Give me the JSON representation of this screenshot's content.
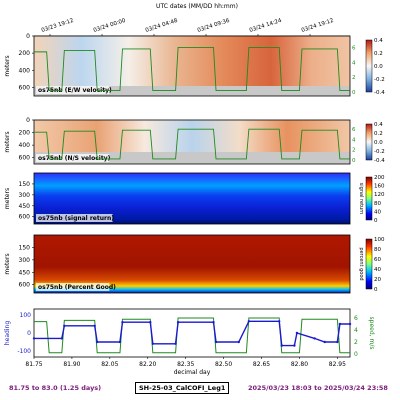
{
  "top_axis": {
    "title": "UTC dates (MM/DD hh:mm)",
    "ticks": [
      "03/23 19:12",
      "03/24 00:00",
      "03/24 04:48",
      "03/24 09:36",
      "03/24 14:24",
      "03/24 19:12"
    ]
  },
  "footer": {
    "range_days": "81.75 to 83.0 (1.25 days)",
    "cruise": "SH-25-03_CalCOFI_Leg1",
    "range_dates": "2025/03/23 18:03 to 2025/03/24 23:58"
  },
  "colors": {
    "ship_speed": "#1f8a1f",
    "heading": "#1a1ad0",
    "text_label": "#7a1a7a",
    "bad_data": "#c8c8c8"
  },
  "chart_data": [
    {
      "type": "heatmap",
      "panel_label": "os75nb (E/W velocity)",
      "ylabel": "meters",
      "y_ticks": [
        0,
        200,
        400,
        600
      ],
      "ylim": [
        700,
        0
      ],
      "colorbar_ticks": [
        0.4,
        0.2,
        0.0,
        -0.2,
        -0.4
      ],
      "colorbar_range": [
        -0.4,
        0.4
      ],
      "colormap": "diverging blue-white-red",
      "right_axis_ticks": [
        0,
        2,
        4,
        6
      ],
      "right_axis_label": ""
    },
    {
      "type": "heatmap",
      "panel_label": "os75nb (N/S velocity)",
      "ylabel": "meters",
      "y_ticks": [
        0,
        200,
        400,
        600
      ],
      "ylim": [
        700,
        0
      ],
      "colorbar_ticks": [
        0.4,
        0.2,
        0.0,
        -0.2,
        -0.4
      ],
      "colorbar_range": [
        -0.4,
        0.4
      ],
      "colormap": "diverging blue-white-red",
      "right_axis_ticks": [
        0,
        2,
        4,
        6
      ],
      "right_axis_label": ""
    },
    {
      "type": "heatmap",
      "panel_label": "os75nb (signal return)",
      "ylabel": "meters",
      "y_ticks": [
        150,
        300,
        450,
        600
      ],
      "ylim": [
        700,
        0
      ],
      "colorbar_ticks": [
        200,
        160,
        120,
        80,
        40,
        0
      ],
      "colorbar_range": [
        0,
        200
      ],
      "colorbar_label": "signal return",
      "colormap": "jet"
    },
    {
      "type": "heatmap",
      "panel_label": "os75nb (Percent Good)",
      "ylabel": "meters",
      "y_ticks": [
        150,
        300,
        450,
        600
      ],
      "ylim": [
        700,
        0
      ],
      "colorbar_ticks": [
        100,
        80,
        60,
        40,
        20,
        0
      ],
      "colorbar_range": [
        0,
        100
      ],
      "colorbar_label": "percent good",
      "colormap": "jet"
    },
    {
      "type": "line",
      "xlabel": "decimal day",
      "x_ticks": [
        "81.75",
        "81.90",
        "82.05",
        "82.20",
        "82.35",
        "82.50",
        "82.65",
        "82.80",
        "82.95"
      ],
      "xlim": [
        81.75,
        83.0
      ],
      "left_axis_label": "heading",
      "left_axis_ticks": [
        100,
        0,
        -100
      ],
      "right_axis_label": "speed, m/s",
      "right_axis_ticks": [
        6,
        4,
        2,
        0
      ],
      "series": [
        {
          "name": "heading",
          "axis": "left",
          "points": [
            [
              81.75,
              -30
            ],
            [
              81.86,
              -30
            ],
            [
              81.87,
              40
            ],
            [
              81.99,
              40
            ],
            [
              82.0,
              -50
            ],
            [
              82.09,
              -50
            ],
            [
              82.1,
              60
            ],
            [
              82.21,
              60
            ],
            [
              82.22,
              -60
            ],
            [
              82.31,
              -60
            ],
            [
              82.32,
              60
            ],
            [
              82.46,
              60
            ],
            [
              82.47,
              -50
            ],
            [
              82.56,
              -50
            ],
            [
              82.6,
              65
            ],
            [
              82.72,
              65
            ],
            [
              82.73,
              -70
            ],
            [
              82.78,
              -70
            ],
            [
              82.79,
              0
            ],
            [
              82.86,
              -30
            ],
            [
              82.9,
              -50
            ],
            [
              82.95,
              -50
            ],
            [
              82.96,
              50
            ],
            [
              83.0,
              50
            ]
          ]
        },
        {
          "name": "ship speed",
          "axis": "right",
          "points": [
            [
              81.75,
              5.4
            ],
            [
              81.8,
              5.4
            ],
            [
              81.81,
              0.2
            ],
            [
              81.86,
              0.2
            ],
            [
              81.87,
              5.6
            ],
            [
              81.99,
              5.6
            ],
            [
              82.0,
              0.2
            ],
            [
              82.09,
              0.2
            ],
            [
              82.1,
              5.8
            ],
            [
              82.21,
              5.8
            ],
            [
              82.22,
              0.2
            ],
            [
              82.31,
              0.2
            ],
            [
              82.32,
              6.0
            ],
            [
              82.46,
              6.0
            ],
            [
              82.47,
              0.2
            ],
            [
              82.59,
              0.2
            ],
            [
              82.6,
              6.0
            ],
            [
              82.72,
              6.0
            ],
            [
              82.73,
              0.2
            ],
            [
              82.8,
              0.2
            ],
            [
              82.81,
              5.8
            ],
            [
              82.95,
              5.8
            ],
            [
              82.96,
              0.2
            ],
            [
              83.0,
              0.2
            ]
          ]
        }
      ]
    }
  ]
}
